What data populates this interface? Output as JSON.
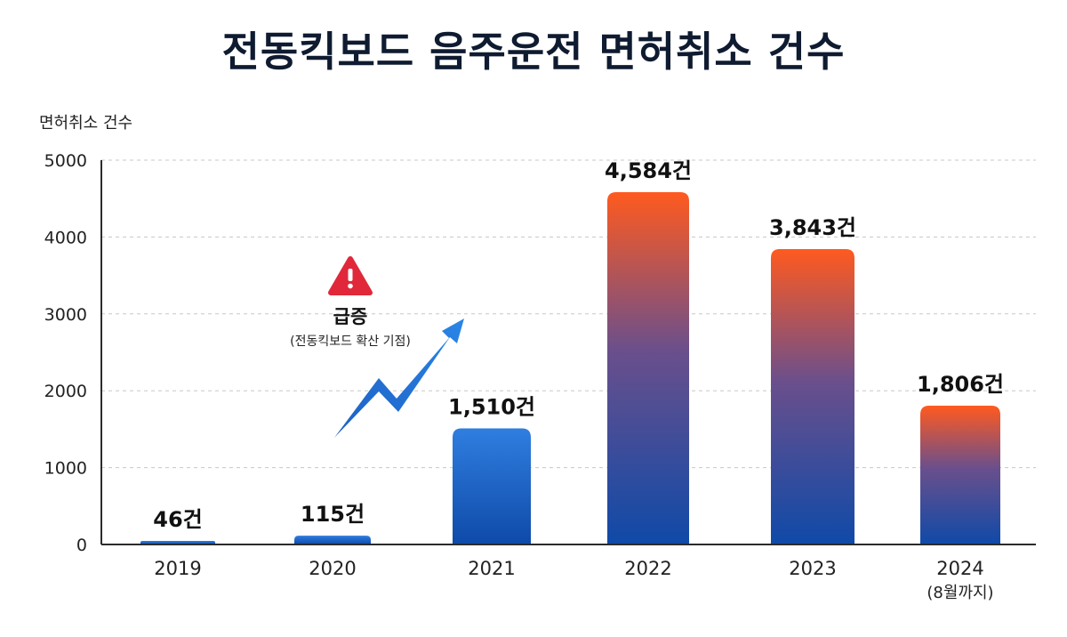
{
  "chart_data": {
    "type": "bar",
    "title": "전동킥보드 음주운전 면허취소 건수",
    "ylabel": "면허취소 건수",
    "xlabel": "",
    "ylim": [
      0,
      5000
    ],
    "yticks": [
      0,
      1000,
      2000,
      3000,
      4000,
      5000
    ],
    "grid": true,
    "categories": [
      "2019",
      "2020",
      "2021",
      "2022",
      "2023",
      "2024"
    ],
    "category_sublabels": [
      "",
      "",
      "",
      "",
      "",
      "(8월까지)"
    ],
    "values": [
      46,
      115,
      1510,
      4584,
      3843,
      1806
    ],
    "data_labels": [
      "46건",
      "115건",
      "1,510건",
      "4,584건",
      "3,843건",
      "1,806건"
    ],
    "annotation": {
      "title": "급증",
      "subtitle": "(전동킥보드 확산 기점)",
      "icon": "warning-triangle-icon",
      "arrow": "zigzag-up-arrow-icon"
    },
    "colors": {
      "blue_top": "#2f7ee0",
      "blue_bottom": "#0f4aa8",
      "red_top": "#ff5a1f",
      "purple_mid": "#6a4f8c",
      "axis": "#2b2b2b",
      "grid": "#c8c8c8",
      "warning": "#e0283a"
    }
  }
}
